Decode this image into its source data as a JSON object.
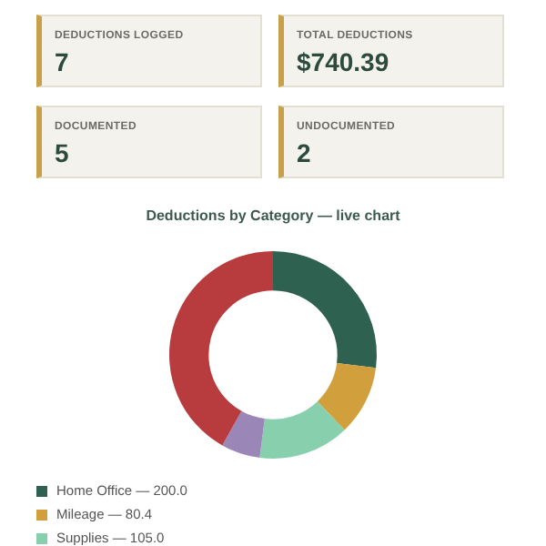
{
  "chart_data": [
    {
      "type": "other",
      "categories": [
        "DEDUCTIONS LOGGED",
        "TOTAL DEDUCTIONS",
        "DOCUMENTED",
        "UNDOCUMENTED"
      ],
      "value_labels": [
        "7",
        "$740.39",
        "5",
        "2"
      ]
    },
    {
      "type": "donut",
      "title": "Deductions by Category — live chart",
      "categories": [
        "Home Office — 200.0",
        "Mileage — 80.4",
        "Supplies — 105.0",
        null,
        null
      ],
      "values": [
        27.01,
        10.86,
        14.18,
        6.08,
        41.87
      ],
      "colors": [
        "#2e6150",
        "#d19f3c",
        "#88cfad",
        "#9b86b8",
        "#b83c3e"
      ],
      "legend": "bottom"
    }
  ]
}
